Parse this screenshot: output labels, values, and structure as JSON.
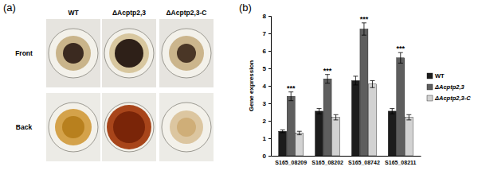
{
  "panel_labels": [
    "(a)",
    "(b)"
  ],
  "panel_a": {
    "columns": [
      "WT",
      "ΔAcptp2,3",
      "ΔAcptp2,3-C"
    ],
    "rows": [
      "Front",
      "Back"
    ]
  },
  "chart_data": {
    "type": "bar",
    "y_label": "Gene expression",
    "categories": [
      "S165_08209",
      "S165_08202",
      "S165_08742",
      "S165_08211"
    ],
    "series": [
      {
        "name": "WT",
        "color": "#1c1c1c",
        "values": [
          1.4,
          2.55,
          4.3,
          2.55
        ],
        "errors": [
          0.08,
          0.15,
          0.25,
          0.15
        ]
      },
      {
        "name": "ΔAcptp2,3",
        "color": "#5e5e5e",
        "values": [
          3.4,
          4.4,
          7.25,
          5.6
        ],
        "errors": [
          0.25,
          0.25,
          0.35,
          0.3
        ]
      },
      {
        "name": "ΔAcptp2,3-C",
        "color": "#d2d2d2",
        "values": [
          1.3,
          2.2,
          4.1,
          2.2
        ],
        "errors": [
          0.1,
          0.15,
          0.2,
          0.15
        ]
      }
    ],
    "annotations": [
      "***",
      "***",
      "***",
      "***"
    ],
    "ylim": [
      0,
      8
    ],
    "yticks": [
      0,
      1,
      2,
      3,
      4,
      5,
      6,
      7,
      8
    ],
    "legend": "right",
    "grid": false
  }
}
